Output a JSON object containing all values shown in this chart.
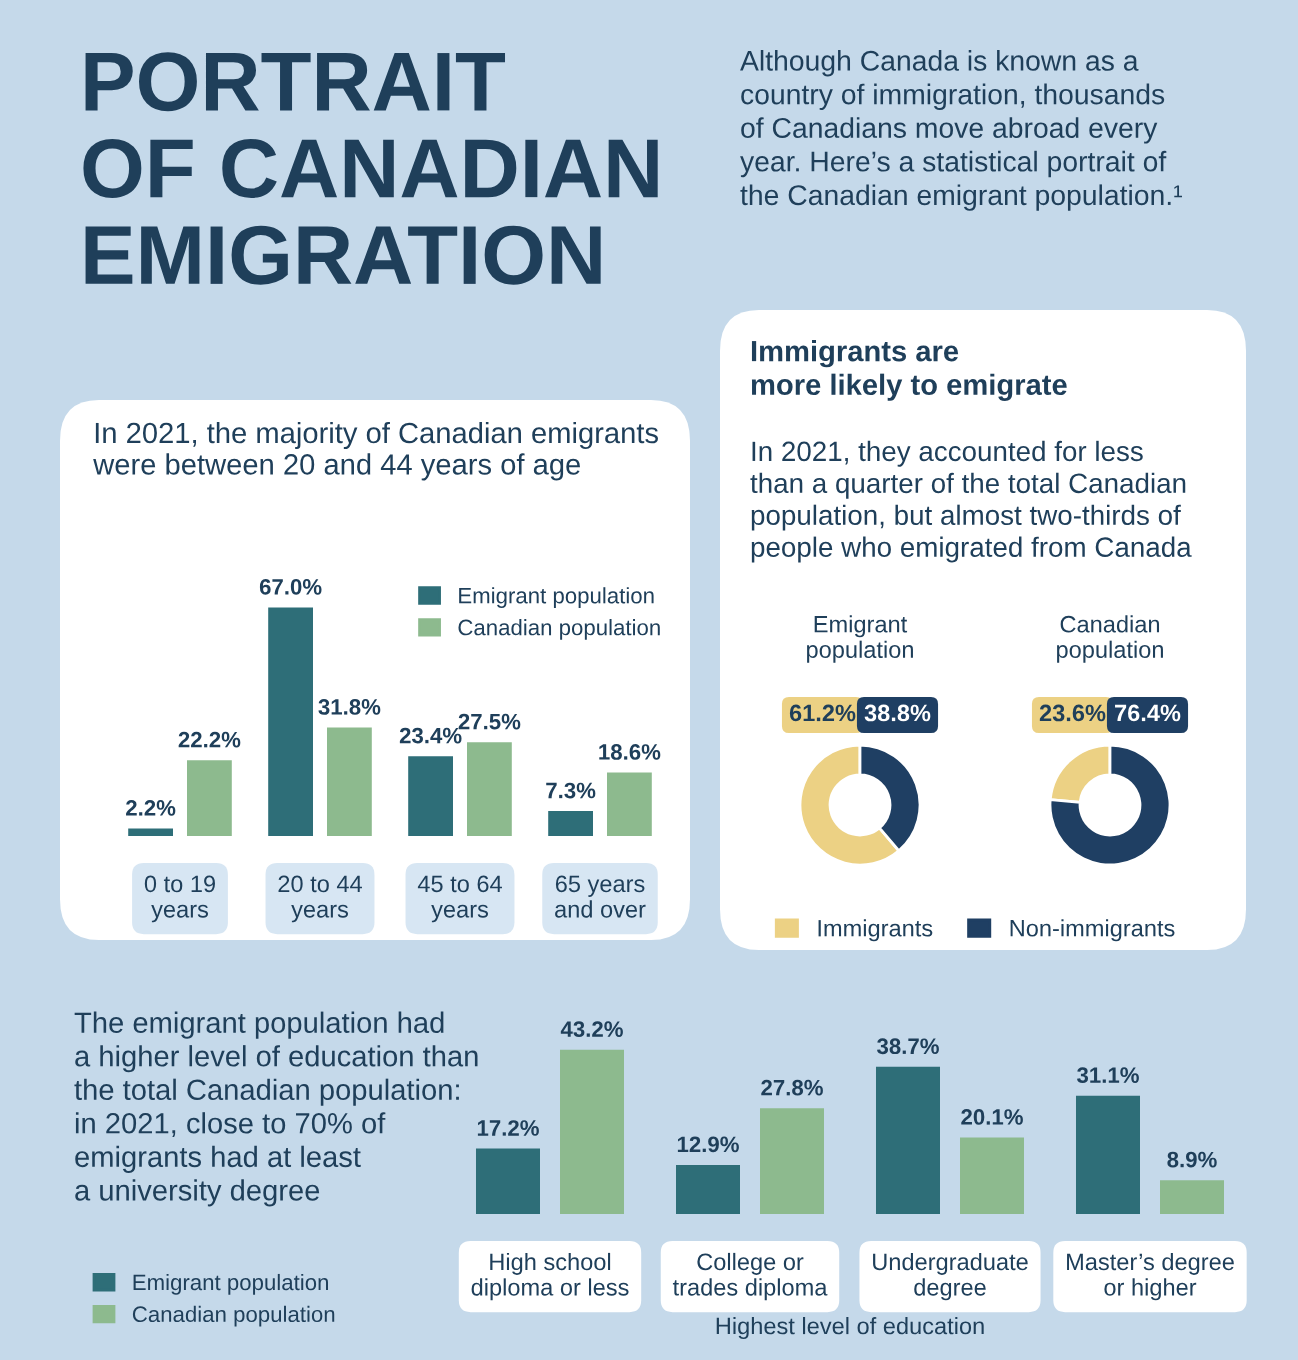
{
  "chart_data": [
    {
      "type": "other",
      "title": "PORTRAIT\nOF CANADIAN\nEMIGRATION",
      "subtitle": "Although Canada is known as a\ncountry of immigration, thousands\nof Canadians move abroad every\nyear. Here’s a statistical portrait of\nthe Canadian emigrant population.¹"
    },
    {
      "type": "bar",
      "title": "In 2021, the majority of Canadian emigrants\nwere between 20 and 44 years of age",
      "categories": [
        "0 to 19\nyears",
        "20 to 44\nyears",
        "45 to 64\nyears",
        "65 years\nand over"
      ],
      "legend": "top right",
      "series": [
        {
          "name": "Emigrant population",
          "color": "#2e6e78",
          "values": [
            2.2,
            67.0,
            23.4,
            7.3
          ],
          "value_labels": [
            "2.2%",
            "67.0%",
            "23.4%",
            "7.3%"
          ]
        },
        {
          "name": "Canadian population",
          "color": "#8dba8e",
          "values": [
            22.2,
            31.8,
            27.5,
            18.6
          ],
          "value_labels": [
            "22.2%",
            "31.8%",
            "27.5%",
            "18.6%"
          ]
        }
      ]
    },
    {
      "type": "other",
      "title": "Immigrants are\nmore likely to emigrate",
      "subtitle": "In 2021, they accounted for less\nthan a quarter of the total Canadian\npopulation, but almost two-thirds of\npeople who emigrated from Canada"
    },
    {
      "type": "donut",
      "title": "Emigrant\npopulation",
      "categories": [
        "Immigrants",
        "Non-immigrants"
      ],
      "values": [
        61.2,
        38.8
      ],
      "value_labels": [
        "61.2%",
        "38.8%"
      ],
      "colors": [
        "#ecd184",
        "#1f3f63"
      ],
      "legend": "bottom"
    },
    {
      "type": "donut",
      "title": "Canadian\npopulation",
      "categories": [
        null,
        null
      ],
      "values": [
        23.6,
        76.4
      ],
      "value_labels": [
        "23.6%",
        "76.4%"
      ],
      "colors": [
        "#ecd184",
        "#1f3f63"
      ]
    },
    {
      "type": "bar",
      "xlabel": "Highest level of education",
      "annotations": [
        "The emigrant population had\na higher level of education than\nthe total Canadian population:\nin 2021, close to 70% of\nemigrants had at least\na university degree"
      ],
      "categories": [
        "High school\ndiploma or less",
        "College or\ntrades diploma",
        "Undergraduate\ndegree",
        "Master’s degree\nor higher"
      ],
      "legend": "bottom left",
      "series": [
        {
          "name": "Emigrant population",
          "color": "#2e6e78",
          "values": [
            17.2,
            12.9,
            38.7,
            31.1
          ],
          "value_labels": [
            "17.2%",
            "12.9%",
            "38.7%",
            "31.1%"
          ]
        },
        {
          "name": "Canadian population",
          "color": "#8dba8e",
          "values": [
            43.2,
            27.8,
            20.1,
            8.9
          ],
          "value_labels": [
            "43.2%",
            "27.8%",
            "20.1%",
            "8.9%"
          ]
        }
      ]
    }
  ]
}
